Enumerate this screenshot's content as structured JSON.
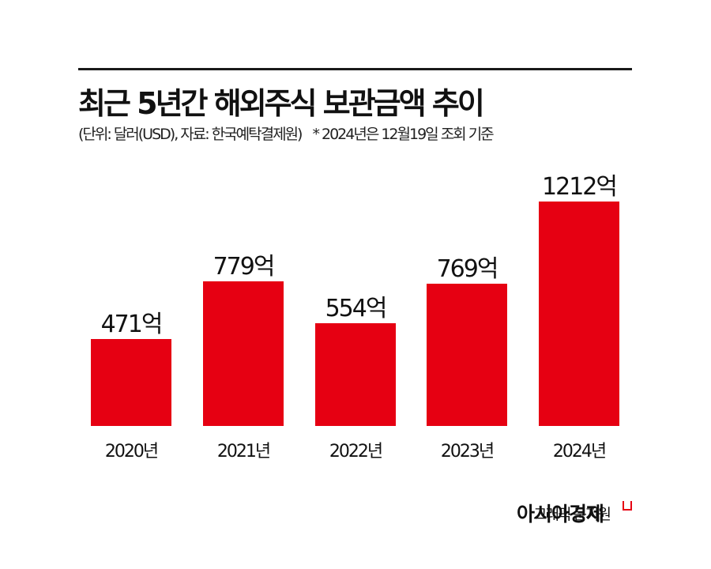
{
  "header": {
    "title": "최근 5년간 해외주식 보관금액 추이",
    "subtitle": "(단위: 달러(USD), 자료: 한국예탁결제원)",
    "note": "* 2024년은 12월19일 조회 기준"
  },
  "bars": [
    {
      "category": "2020년",
      "label": "471억",
      "value": 471
    },
    {
      "category": "2021년",
      "label": "779억",
      "value": 779
    },
    {
      "category": "2022년",
      "label": "554억",
      "value": 554
    },
    {
      "category": "2023년",
      "label": "769억",
      "value": 769
    },
    {
      "category": "2024년",
      "label": "1212억",
      "value": 1212
    }
  ],
  "footer": {
    "credit": "그래픽 문지원",
    "brand": "아시아경제"
  },
  "colors": {
    "bar": "#e60012",
    "text": "#111111"
  },
  "chart_data": {
    "type": "bar",
    "title": "최근 5년간 해외주식 보관금액 추이",
    "subtitle": "(단위: 달러(USD), 자료: 한국예탁결제원)",
    "annotations": [
      "* 2024년은 12월19일 조회 기준"
    ],
    "categories": [
      "2020년",
      "2021년",
      "2022년",
      "2023년",
      "2024년"
    ],
    "values": [
      471,
      779,
      554,
      769,
      1212
    ],
    "data_labels": [
      "471억",
      "779억",
      "554억",
      "769억",
      "1212억"
    ],
    "unit": "억 달러 (USD)",
    "xlabel": "",
    "ylabel": "",
    "grid": false,
    "legend": null,
    "source": "한국예탁결제원"
  }
}
